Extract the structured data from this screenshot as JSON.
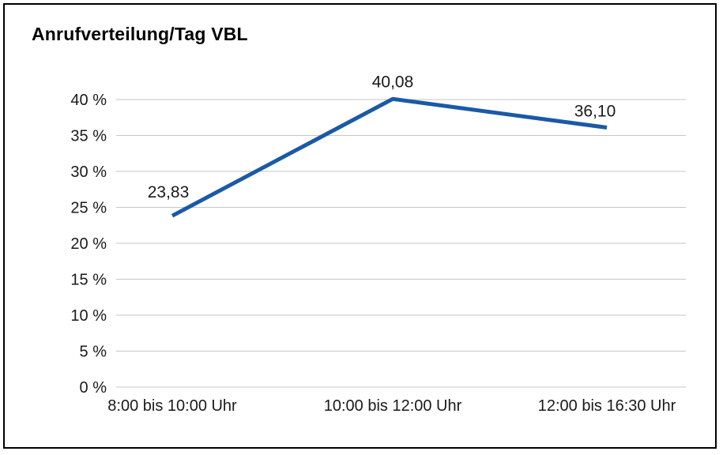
{
  "chart_data": {
    "type": "line",
    "title": "Anrufverteilung/Tag VBL",
    "categories": [
      "8:00 bis 10:00 Uhr",
      "10:00 bis 12:00 Uhr",
      "12:00 bis 16:30 Uhr"
    ],
    "values": [
      23.83,
      40.08,
      36.1
    ],
    "value_labels": [
      "23,83",
      "40,08",
      "36,10"
    ],
    "y_ticks": [
      0,
      5,
      10,
      15,
      20,
      25,
      30,
      35,
      40
    ],
    "y_tick_labels": [
      "0 %",
      "5 %",
      "10 %",
      "15 %",
      "20 %",
      "25 %",
      "30 %",
      "35 %",
      "40 %"
    ],
    "ylim": [
      0,
      40
    ],
    "xlabel": "",
    "ylabel": "",
    "grid": "horizontal",
    "legend": "none",
    "colors": {
      "line": "#1A5AA5",
      "grid": "#C6C6C6",
      "text": "#1A1A1A",
      "frame": "#000000",
      "background": "#FFFFFF"
    }
  }
}
